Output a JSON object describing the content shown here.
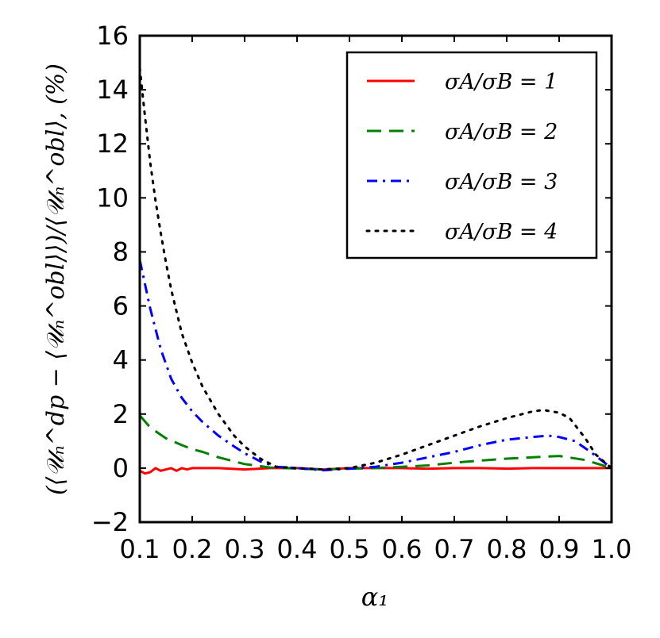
{
  "chart_data": {
    "type": "line",
    "title": "",
    "xlabel": "α₁",
    "ylabel": "(⟨𝒰ₙ^dp − ⟨𝒰ₙ^obl⟩⟩)/⟨𝒰ₙ^obl⟩, (%)",
    "xlim": [
      0.1,
      1.0
    ],
    "ylim": [
      -2,
      16
    ],
    "x_ticks": [
      "0.1",
      "0.2",
      "0.3",
      "0.4",
      "0.5",
      "0.6",
      "0.7",
      "0.8",
      "0.9",
      "1.0"
    ],
    "y_ticks": [
      "−2",
      "0",
      "2",
      "4",
      "6",
      "8",
      "10",
      "12",
      "14",
      "16"
    ],
    "legend_position": "top-right",
    "series": [
      {
        "name": "σA/σB = 1",
        "label": "σA/σB = 1",
        "color": "#ff0000",
        "style": "solid",
        "points": [
          [
            0.1,
            -0.1
          ],
          [
            0.11,
            -0.2
          ],
          [
            0.12,
            -0.15
          ],
          [
            0.13,
            0.0
          ],
          [
            0.14,
            -0.1
          ],
          [
            0.15,
            -0.05
          ],
          [
            0.16,
            0.0
          ],
          [
            0.17,
            -0.1
          ],
          [
            0.18,
            0.0
          ],
          [
            0.19,
            -0.05
          ],
          [
            0.2,
            0.0
          ],
          [
            0.25,
            0.0
          ],
          [
            0.3,
            -0.05
          ],
          [
            0.35,
            0.0
          ],
          [
            0.4,
            0.0
          ],
          [
            0.45,
            -0.05
          ],
          [
            0.5,
            0.0
          ],
          [
            0.55,
            0.0
          ],
          [
            0.6,
            0.0
          ],
          [
            0.65,
            -0.02
          ],
          [
            0.7,
            0.0
          ],
          [
            0.75,
            0.0
          ],
          [
            0.8,
            -0.02
          ],
          [
            0.85,
            0.0
          ],
          [
            0.9,
            0.0
          ],
          [
            0.95,
            0.0
          ],
          [
            1.0,
            0.0
          ]
        ]
      },
      {
        "name": "σA/σB = 2",
        "label": "σA/σB = 2",
        "color": "#008000",
        "style": "dashed",
        "points": [
          [
            0.1,
            1.95
          ],
          [
            0.12,
            1.5
          ],
          [
            0.15,
            1.1
          ],
          [
            0.18,
            0.85
          ],
          [
            0.2,
            0.7
          ],
          [
            0.22,
            0.6
          ],
          [
            0.25,
            0.4
          ],
          [
            0.3,
            0.15
          ],
          [
            0.35,
            0.02
          ],
          [
            0.4,
            -0.02
          ],
          [
            0.45,
            -0.05
          ],
          [
            0.5,
            -0.02
          ],
          [
            0.55,
            0.0
          ],
          [
            0.6,
            0.05
          ],
          [
            0.65,
            0.1
          ],
          [
            0.7,
            0.2
          ],
          [
            0.75,
            0.28
          ],
          [
            0.8,
            0.35
          ],
          [
            0.85,
            0.4
          ],
          [
            0.9,
            0.45
          ],
          [
            0.95,
            0.3
          ],
          [
            1.0,
            0.0
          ]
        ]
      },
      {
        "name": "σA/σB = 3",
        "label": "σA/σB = 3",
        "color": "#0000ff",
        "style": "dashdot",
        "points": [
          [
            0.1,
            7.7
          ],
          [
            0.11,
            6.8
          ],
          [
            0.12,
            5.9
          ],
          [
            0.14,
            4.4
          ],
          [
            0.16,
            3.3
          ],
          [
            0.18,
            2.6
          ],
          [
            0.2,
            2.1
          ],
          [
            0.22,
            1.7
          ],
          [
            0.25,
            1.2
          ],
          [
            0.28,
            0.8
          ],
          [
            0.3,
            0.55
          ],
          [
            0.33,
            0.25
          ],
          [
            0.36,
            0.05
          ],
          [
            0.4,
            0.0
          ],
          [
            0.45,
            -0.08
          ],
          [
            0.5,
            -0.02
          ],
          [
            0.55,
            0.05
          ],
          [
            0.6,
            0.2
          ],
          [
            0.65,
            0.4
          ],
          [
            0.7,
            0.6
          ],
          [
            0.75,
            0.85
          ],
          [
            0.8,
            1.05
          ],
          [
            0.85,
            1.15
          ],
          [
            0.88,
            1.2
          ],
          [
            0.9,
            1.15
          ],
          [
            0.93,
            1.0
          ],
          [
            0.96,
            0.6
          ],
          [
            1.0,
            0.0
          ]
        ]
      },
      {
        "name": "σA/σB = 4",
        "label": "σA/σB = 4",
        "color": "#000000",
        "style": "dotted",
        "points": [
          [
            0.1,
            14.8
          ],
          [
            0.11,
            13.0
          ],
          [
            0.12,
            11.3
          ],
          [
            0.13,
            9.9
          ],
          [
            0.14,
            8.7
          ],
          [
            0.15,
            7.6
          ],
          [
            0.16,
            6.6
          ],
          [
            0.18,
            5.0
          ],
          [
            0.2,
            3.9
          ],
          [
            0.22,
            3.0
          ],
          [
            0.25,
            2.0
          ],
          [
            0.28,
            1.2
          ],
          [
            0.3,
            0.8
          ],
          [
            0.33,
            0.35
          ],
          [
            0.36,
            0.05
          ],
          [
            0.4,
            0.0
          ],
          [
            0.45,
            -0.05
          ],
          [
            0.5,
            0.0
          ],
          [
            0.55,
            0.2
          ],
          [
            0.6,
            0.5
          ],
          [
            0.65,
            0.85
          ],
          [
            0.7,
            1.2
          ],
          [
            0.75,
            1.55
          ],
          [
            0.8,
            1.85
          ],
          [
            0.85,
            2.1
          ],
          [
            0.87,
            2.15
          ],
          [
            0.9,
            2.05
          ],
          [
            0.92,
            1.85
          ],
          [
            0.95,
            1.1
          ],
          [
            0.97,
            0.5
          ],
          [
            1.0,
            0.0
          ]
        ]
      }
    ]
  }
}
